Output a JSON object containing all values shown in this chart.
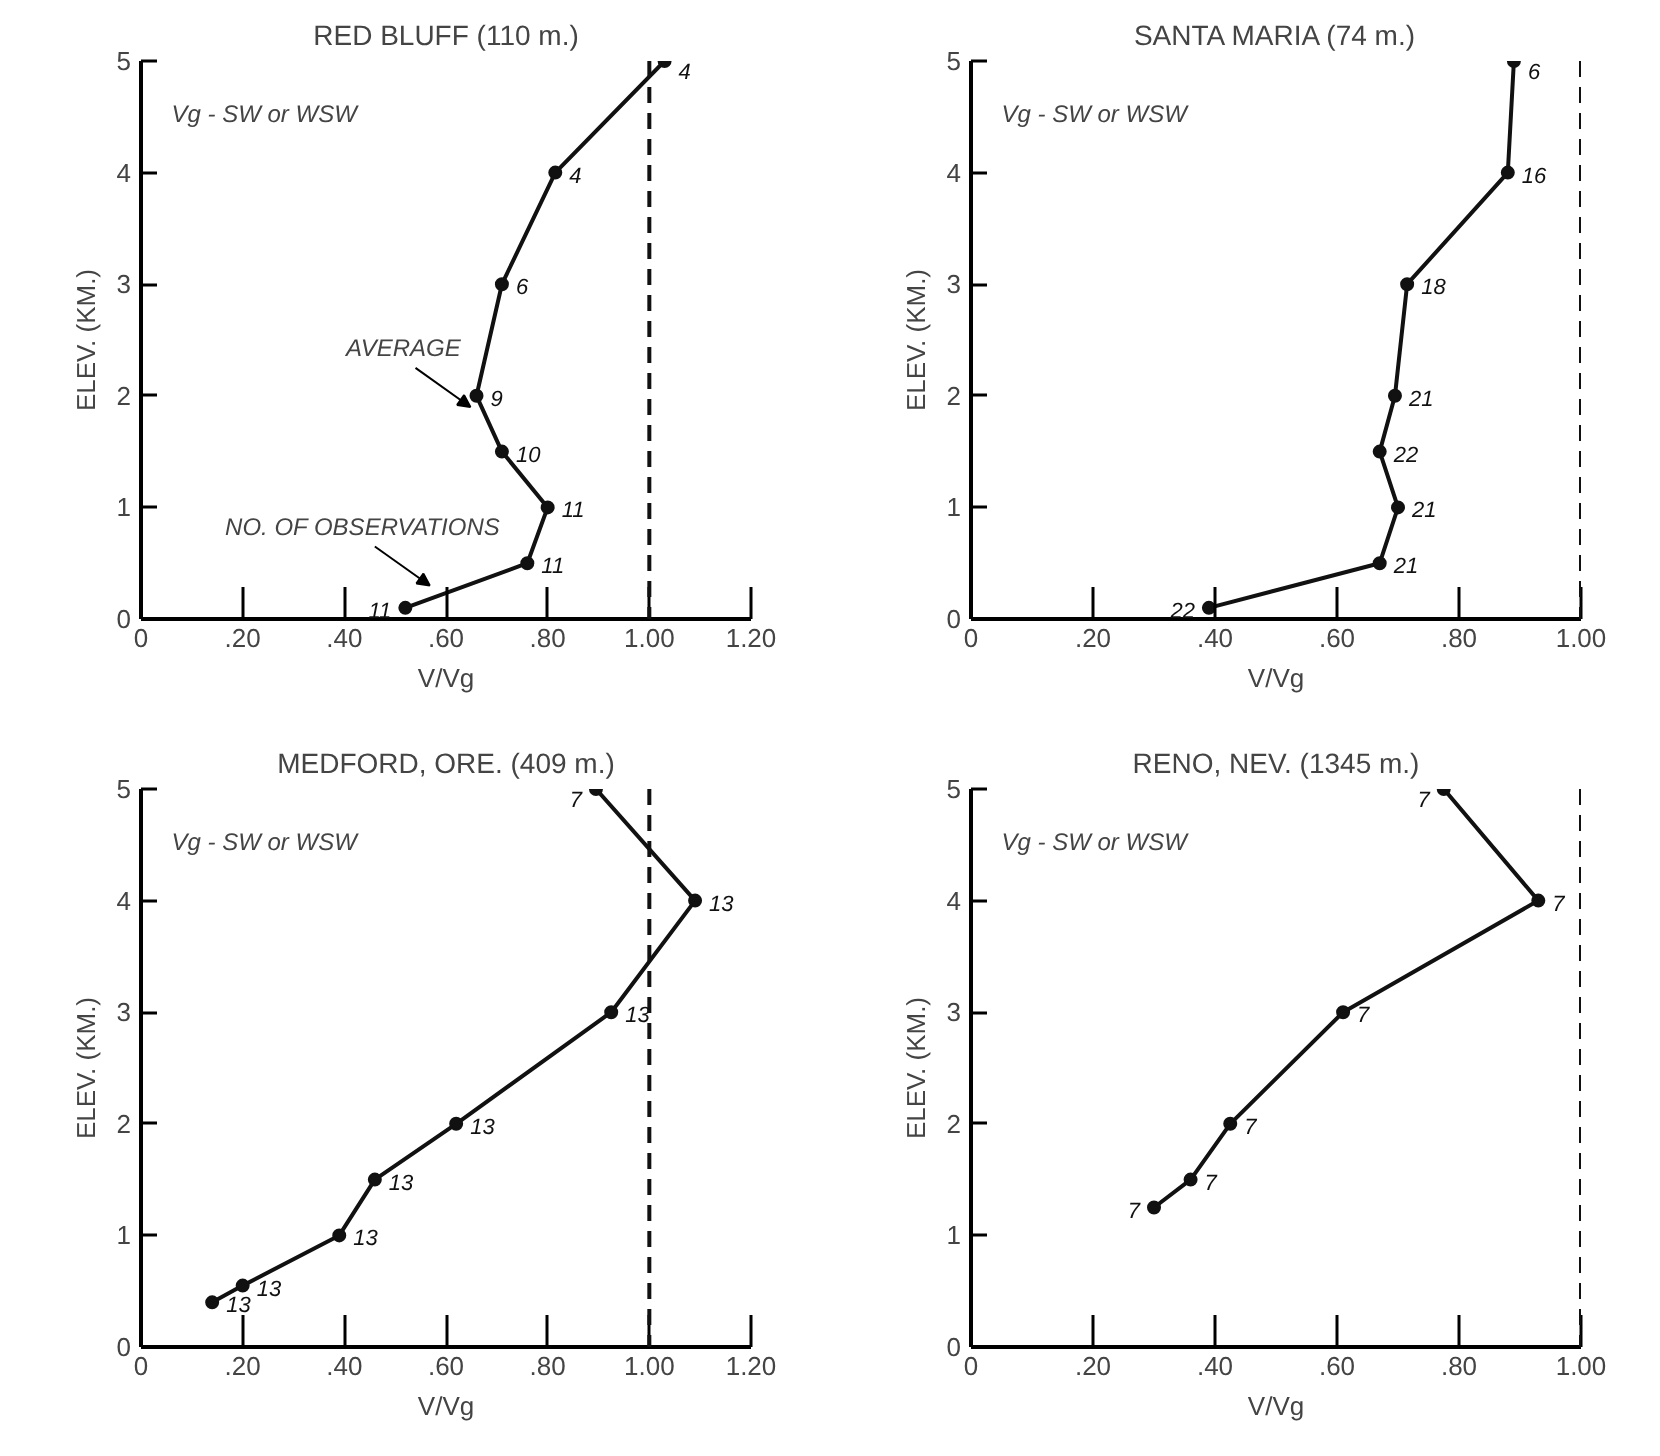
{
  "chart_data": [
    {
      "type": "line",
      "title": "RED BLUFF (110 m.)",
      "xlabel": "V/Vg",
      "ylabel": "ELEV. (KM.)",
      "marker": "circle",
      "line_style": "solid",
      "color": "#111111",
      "x": [
        0.52,
        0.76,
        0.8,
        0.71,
        0.66,
        0.71,
        0.815,
        1.03
      ],
      "values": [
        0.1,
        0.5,
        1,
        1.5,
        2,
        3,
        4,
        5
      ],
      "xlim": [
        0,
        1.2
      ],
      "ylim": [
        0,
        5
      ],
      "xticks": [
        0,
        {
          "value": 0.2,
          "label": ".20"
        },
        {
          "value": 0.4,
          "label": ".40"
        },
        {
          "value": 0.6,
          "label": ".60"
        },
        {
          "value": 0.8,
          "label": ".80"
        },
        {
          "value": 1.0,
          "label": "1.00"
        },
        {
          "value": 1.2,
          "label": "1.20"
        }
      ],
      "yticks": [
        0,
        1,
        2,
        3,
        4,
        5
      ],
      "ref_lines": [
        {
          "axis": "x",
          "value": 1.0,
          "line_style": "dashed",
          "color": "#111111"
        }
      ],
      "annotations": [
        "Vg - SW or WSW",
        {
          "text": "AVERAGE",
          "x": 0.66,
          "y": 1.8
        },
        {
          "text": "NO. OF OBSERVATIONS",
          "x": 0.58,
          "y": 0.2
        },
        {
          "text": "11",
          "x": 0.52,
          "y": 0.1
        },
        {
          "text": "11",
          "x": 0.76,
          "y": 0.5
        },
        {
          "text": "11",
          "x": 0.8,
          "y": 1
        },
        {
          "text": "10",
          "x": 0.71,
          "y": 1.5
        },
        {
          "text": "9",
          "x": 0.66,
          "y": 2
        },
        {
          "text": "6",
          "x": 0.71,
          "y": 3
        },
        {
          "text": "4",
          "x": 0.815,
          "y": 4
        },
        {
          "text": "4",
          "x": 1.03,
          "y": 5
        }
      ]
    },
    {
      "type": "line",
      "title": "SANTA MARIA (74 m.)",
      "xlabel": "V/Vg",
      "ylabel": "ELEV. (KM.)",
      "marker": "circle",
      "line_style": "solid",
      "color": "#111111",
      "x": [
        0.39,
        0.67,
        0.7,
        0.67,
        0.695,
        0.715,
        0.88,
        0.89
      ],
      "values": [
        0.1,
        0.5,
        1,
        1.5,
        2,
        3,
        4,
        5
      ],
      "xlim": [
        0,
        1.0
      ],
      "ylim": [
        0,
        5
      ],
      "xticks": [
        0,
        {
          "value": 0.2,
          "label": ".20"
        },
        {
          "value": 0.4,
          "label": ".40"
        },
        {
          "value": 0.6,
          "label": ".60"
        },
        {
          "value": 0.8,
          "label": ".80"
        },
        {
          "value": 1.0,
          "label": "1.00"
        }
      ],
      "yticks": [
        0,
        1,
        2,
        3,
        4,
        5
      ],
      "ref_lines": [
        {
          "axis": "x",
          "value": 1.0,
          "line_style": "dashed",
          "color": "#111111"
        }
      ],
      "annotations": [
        "Vg - SW or WSW",
        {
          "text": "22",
          "x": 0.39,
          "y": 0.1
        },
        {
          "text": "21",
          "x": 0.67,
          "y": 0.5
        },
        {
          "text": "21",
          "x": 0.7,
          "y": 1
        },
        {
          "text": "22",
          "x": 0.67,
          "y": 1.5
        },
        {
          "text": "21",
          "x": 0.695,
          "y": 2
        },
        {
          "text": "18",
          "x": 0.715,
          "y": 3
        },
        {
          "text": "16",
          "x": 0.88,
          "y": 4
        },
        {
          "text": "6",
          "x": 0.89,
          "y": 5
        }
      ]
    },
    {
      "type": "line",
      "title": "MEDFORD, ORE. (409 m.)",
      "xlabel": "V/Vg",
      "ylabel": "ELEV. (KM.)",
      "marker": "circle",
      "line_style": "solid",
      "color": "#111111",
      "x": [
        0.14,
        0.2,
        0.39,
        0.46,
        0.62,
        0.925,
        1.09,
        0.895
      ],
      "values": [
        0.4,
        0.55,
        1,
        1.5,
        2,
        3,
        4,
        5
      ],
      "xlim": [
        0,
        1.2
      ],
      "ylim": [
        0,
        5
      ],
      "xticks": [
        0,
        {
          "value": 0.2,
          "label": ".20"
        },
        {
          "value": 0.4,
          "label": ".40"
        },
        {
          "value": 0.6,
          "label": ".60"
        },
        {
          "value": 0.8,
          "label": ".80"
        },
        {
          "value": 1.0,
          "label": "1.00"
        },
        {
          "value": 1.2,
          "label": "1.20"
        }
      ],
      "yticks": [
        0,
        1,
        2,
        3,
        4,
        5
      ],
      "ref_lines": [
        {
          "axis": "x",
          "value": 1.0,
          "line_style": "dashed",
          "color": "#111111"
        }
      ],
      "annotations": [
        "Vg - SW or WSW",
        {
          "text": "13",
          "x": 0.14,
          "y": 0.4
        },
        {
          "text": "13",
          "x": 0.2,
          "y": 0.55
        },
        {
          "text": "13",
          "x": 0.39,
          "y": 1
        },
        {
          "text": "13",
          "x": 0.46,
          "y": 1.5
        },
        {
          "text": "13",
          "x": 0.62,
          "y": 2
        },
        {
          "text": "13",
          "x": 0.925,
          "y": 3
        },
        {
          "text": "13",
          "x": 1.09,
          "y": 4
        },
        {
          "text": "7",
          "x": 0.895,
          "y": 5
        }
      ]
    },
    {
      "type": "line",
      "title": "RENO, NEV. (1345 m.)",
      "xlabel": "V/Vg",
      "ylabel": "ELEV. (KM.)",
      "marker": "circle",
      "line_style": "solid",
      "color": "#111111",
      "x": [
        0.3,
        0.36,
        0.425,
        0.61,
        0.93,
        0.775
      ],
      "values": [
        1.25,
        1.5,
        2,
        3,
        4,
        5
      ],
      "xlim": [
        0,
        1.0
      ],
      "ylim": [
        0,
        5
      ],
      "xticks": [
        0,
        {
          "value": 0.2,
          "label": ".20"
        },
        {
          "value": 0.4,
          "label": ".40"
        },
        {
          "value": 0.6,
          "label": ".60"
        },
        {
          "value": 0.8,
          "label": ".80"
        },
        {
          "value": 1.0,
          "label": "1.00"
        }
      ],
      "yticks": [
        0,
        1,
        2,
        3,
        4,
        5
      ],
      "ref_lines": [
        {
          "axis": "x",
          "value": 1.0,
          "line_style": "dashed",
          "color": "#111111"
        }
      ],
      "annotations": [
        "Vg - SW or WSW",
        {
          "text": "7",
          "x": 0.3,
          "y": 1.25
        },
        {
          "text": "7",
          "x": 0.36,
          "y": 1.5
        },
        {
          "text": "7",
          "x": 0.425,
          "y": 2
        },
        {
          "text": "7",
          "x": 0.61,
          "y": 3
        },
        {
          "text": "7",
          "x": 0.93,
          "y": 4
        },
        {
          "text": "7",
          "x": 0.775,
          "y": 5
        }
      ]
    }
  ]
}
